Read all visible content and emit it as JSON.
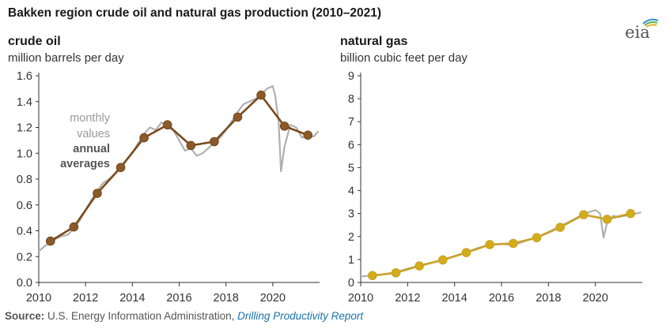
{
  "header": {
    "title": "Bakken region crude oil and natural gas production (2010–2021)",
    "logo_text": "eia"
  },
  "source": {
    "label": "Source:",
    "text": " U.S. Energy Information Administration, ",
    "link": "Drilling Productivity Report"
  },
  "colors": {
    "oil_annual": "#7a4a1e",
    "oil_marker_fill": "#8b5a2b",
    "gas_annual": "#c9a227",
    "gas_marker_fill": "#d4ac1a",
    "monthly": "#b0b0b0",
    "axis": "#333333",
    "tick_text": "#333333",
    "annotation_gray": "#999999",
    "annotation_dark": "#555555"
  },
  "chart_data": [
    {
      "type": "line",
      "panel_title": "crude oil",
      "unit": "million barrels per day",
      "xlim": [
        2010,
        2022
      ],
      "ylim": [
        0,
        1.6
      ],
      "x_ticks": [
        2010,
        2012,
        2014,
        2016,
        2018,
        2020
      ],
      "y_ticks": [
        0.0,
        0.2,
        0.4,
        0.6,
        0.8,
        1.0,
        1.2,
        1.4,
        1.6
      ],
      "y_tick_labels": [
        "0.0",
        "0.2",
        "0.4",
        "0.6",
        "0.8",
        "1.0",
        "1.2",
        "1.4",
        "1.6"
      ],
      "grid": false,
      "annotations": {
        "monthly_line1": "monthly",
        "monthly_line2": "values",
        "annual_line1": "annual",
        "annual_line2": "averages"
      },
      "series": [
        {
          "name": "annual averages",
          "x": [
            2010.5,
            2011.5,
            2012.5,
            2013.5,
            2014.5,
            2015.5,
            2016.5,
            2017.5,
            2018.5,
            2019.5,
            2020.5,
            2021.5
          ],
          "values": [
            0.32,
            0.43,
            0.69,
            0.89,
            1.12,
            1.22,
            1.06,
            1.09,
            1.28,
            1.45,
            1.21,
            1.14
          ]
        },
        {
          "name": "monthly values",
          "x": [
            2010.0,
            2010.25,
            2010.5,
            2010.75,
            2011.0,
            2011.25,
            2011.5,
            2011.75,
            2012.0,
            2012.25,
            2012.5,
            2012.75,
            2013.0,
            2013.25,
            2013.5,
            2013.75,
            2014.0,
            2014.25,
            2014.5,
            2014.75,
            2015.0,
            2015.25,
            2015.5,
            2015.75,
            2016.0,
            2016.25,
            2016.5,
            2016.75,
            2017.0,
            2017.25,
            2017.5,
            2017.75,
            2018.0,
            2018.25,
            2018.5,
            2018.75,
            2019.0,
            2019.25,
            2019.5,
            2019.75,
            2020.0,
            2020.1,
            2020.25,
            2020.35,
            2020.5,
            2020.75,
            2021.0,
            2021.25,
            2021.5,
            2021.75,
            2021.95
          ],
          "values": [
            0.24,
            0.28,
            0.31,
            0.34,
            0.36,
            0.37,
            0.42,
            0.48,
            0.56,
            0.64,
            0.71,
            0.77,
            0.8,
            0.84,
            0.9,
            0.95,
            1.0,
            1.08,
            1.15,
            1.2,
            1.18,
            1.24,
            1.2,
            1.18,
            1.1,
            1.02,
            1.04,
            0.98,
            1.0,
            1.04,
            1.08,
            1.12,
            1.18,
            1.25,
            1.32,
            1.38,
            1.4,
            1.42,
            1.45,
            1.5,
            1.52,
            1.45,
            1.25,
            0.86,
            1.05,
            1.22,
            1.2,
            1.12,
            1.14,
            1.13,
            1.17
          ]
        }
      ]
    },
    {
      "type": "line",
      "panel_title": "natural gas",
      "unit": "billion cubic feet per day",
      "xlim": [
        2010,
        2022
      ],
      "ylim": [
        0,
        9
      ],
      "x_ticks": [
        2010,
        2012,
        2014,
        2016,
        2018,
        2020
      ],
      "y_ticks": [
        0,
        1,
        2,
        3,
        4,
        5,
        6,
        7,
        8,
        9
      ],
      "y_tick_labels": [
        "0",
        "1",
        "2",
        "3",
        "4",
        "5",
        "6",
        "7",
        "8",
        "9"
      ],
      "grid": false,
      "series": [
        {
          "name": "annual averages",
          "x": [
            2010.5,
            2011.5,
            2012.5,
            2013.5,
            2014.5,
            2015.5,
            2016.5,
            2017.5,
            2018.5,
            2019.5,
            2020.5,
            2021.5
          ],
          "values": [
            0.3,
            0.42,
            0.72,
            0.98,
            1.3,
            1.65,
            1.7,
            1.95,
            2.4,
            2.95,
            2.75,
            3.0
          ]
        },
        {
          "name": "monthly values",
          "x": [
            2010.0,
            2010.5,
            2011.0,
            2011.5,
            2012.0,
            2012.5,
            2013.0,
            2013.5,
            2014.0,
            2014.5,
            2015.0,
            2015.5,
            2016.0,
            2016.5,
            2017.0,
            2017.5,
            2018.0,
            2018.5,
            2019.0,
            2019.5,
            2020.0,
            2020.2,
            2020.35,
            2020.5,
            2020.75,
            2021.0,
            2021.5,
            2021.95
          ],
          "values": [
            0.26,
            0.3,
            0.36,
            0.44,
            0.6,
            0.74,
            0.86,
            1.0,
            1.15,
            1.32,
            1.5,
            1.65,
            1.68,
            1.62,
            1.8,
            1.96,
            2.2,
            2.45,
            2.7,
            2.98,
            3.15,
            3.0,
            1.95,
            2.6,
            2.9,
            2.85,
            2.95,
            3.05
          ]
        }
      ]
    }
  ]
}
